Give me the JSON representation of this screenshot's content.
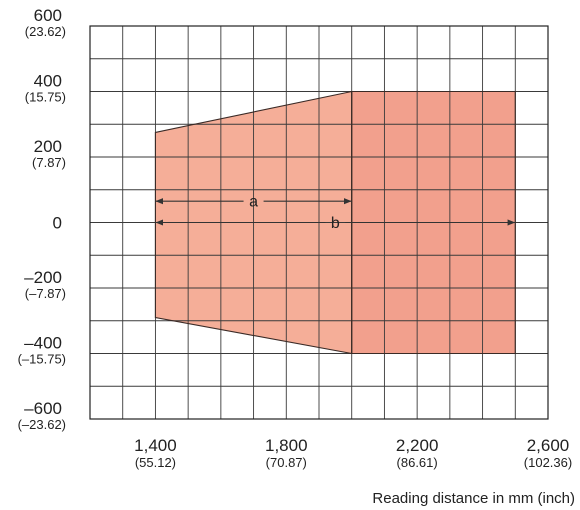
{
  "chart_data": {
    "type": "area",
    "xlabel": "Reading distance in mm (inch)",
    "ylabel": "",
    "xlim": [
      1200,
      2600
    ],
    "ylim": [
      -600,
      600
    ],
    "grid": true,
    "x_ticks": [
      {
        "value": 1400,
        "label": "1,400",
        "sub": "(55.12)"
      },
      {
        "value": 1800,
        "label": "1,800",
        "sub": "(70.87)"
      },
      {
        "value": 2200,
        "label": "2,200",
        "sub": "(86.61)"
      },
      {
        "value": 2600,
        "label": "2,600",
        "sub": "(102.36)"
      }
    ],
    "y_ticks": [
      {
        "value": 600,
        "label": "600",
        "sub": "(23.62)"
      },
      {
        "value": 400,
        "label": "400",
        "sub": "(15.75)"
      },
      {
        "value": 200,
        "label": "200",
        "sub": "(7.87)"
      },
      {
        "value": 0,
        "label": "0",
        "sub": ""
      },
      {
        "value": -200,
        "label": "–200",
        "sub": "(–7.87)"
      },
      {
        "value": -400,
        "label": "–400",
        "sub": "(–15.75)"
      },
      {
        "value": -600,
        "label": "–600",
        "sub": "(–23.62)"
      }
    ],
    "regions": [
      {
        "id": "a",
        "color": "#F5AE98",
        "points": [
          [
            1400,
            275
          ],
          [
            2000,
            400
          ],
          [
            2000,
            -400
          ],
          [
            1400,
            -290
          ]
        ]
      },
      {
        "id": "b",
        "color": "#F2A08D",
        "points": [
          [
            2000,
            400
          ],
          [
            2500,
            400
          ],
          [
            2500,
            -400
          ],
          [
            2000,
            -400
          ]
        ]
      }
    ],
    "dimensions": [
      {
        "label": "a",
        "x_start": 1400,
        "x_end": 2000,
        "y": 65
      },
      {
        "label": "b",
        "x_start": 1400,
        "x_end": 2500,
        "y": 0
      }
    ]
  }
}
